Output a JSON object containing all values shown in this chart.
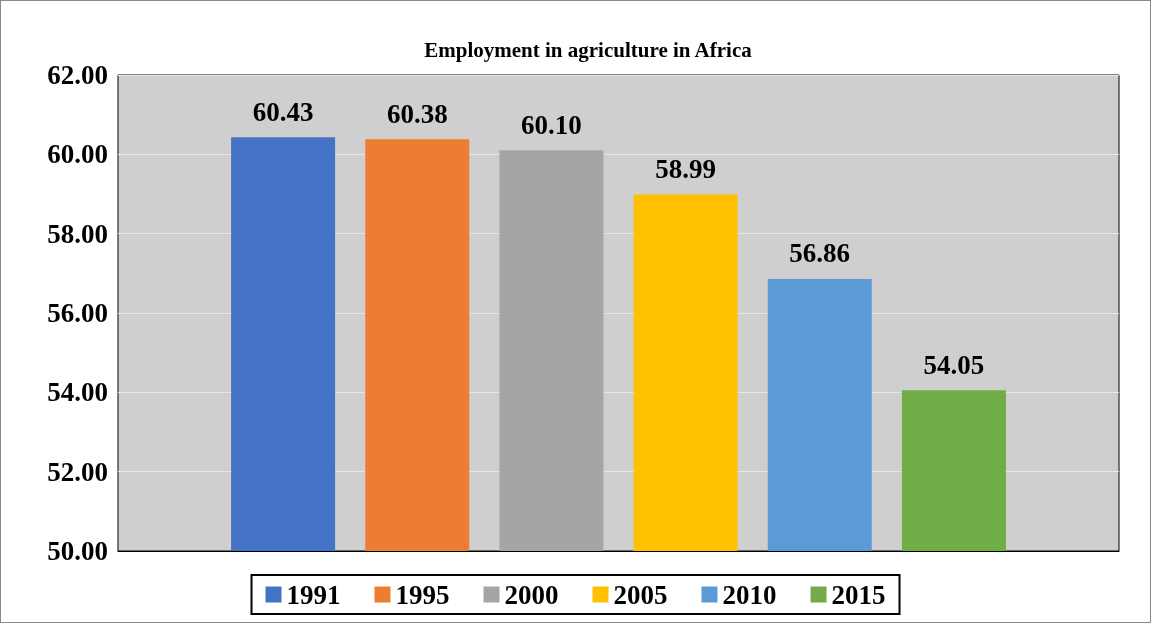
{
  "chart_data": {
    "type": "bar",
    "title": "Employment in agriculture in Africa",
    "categories": [
      null
    ],
    "series": [
      {
        "name": "1991",
        "color": "#4472c4",
        "values": [
          60.43
        ],
        "value_labels": [
          "60.43"
        ]
      },
      {
        "name": "1995",
        "color": "#ed7d31",
        "values": [
          60.38
        ],
        "value_labels": [
          "60.38"
        ]
      },
      {
        "name": "2000",
        "color": "#a5a5a5",
        "values": [
          60.1
        ],
        "value_labels": [
          "60.10"
        ]
      },
      {
        "name": "2005",
        "color": "#ffc000",
        "values": [
          58.99
        ],
        "value_labels": [
          "58.99"
        ]
      },
      {
        "name": "2010",
        "color": "#5b9bd5",
        "values": [
          56.86
        ],
        "value_labels": [
          "56.86"
        ]
      },
      {
        "name": "2015",
        "color": "#70ad47",
        "values": [
          54.05
        ],
        "value_labels": [
          "54.05"
        ]
      }
    ],
    "ylim": [
      50,
      62
    ],
    "yticks": [
      {
        "value": 50,
        "label": "50.00"
      },
      {
        "value": 52,
        "label": "52.00"
      },
      {
        "value": 54,
        "label": "54.00"
      },
      {
        "value": 56,
        "label": "56.00"
      },
      {
        "value": 58,
        "label": "58.00"
      },
      {
        "value": 60,
        "label": "60.00"
      },
      {
        "value": 62,
        "label": "62.00"
      }
    ],
    "grid": "y",
    "legend": "bottom"
  }
}
